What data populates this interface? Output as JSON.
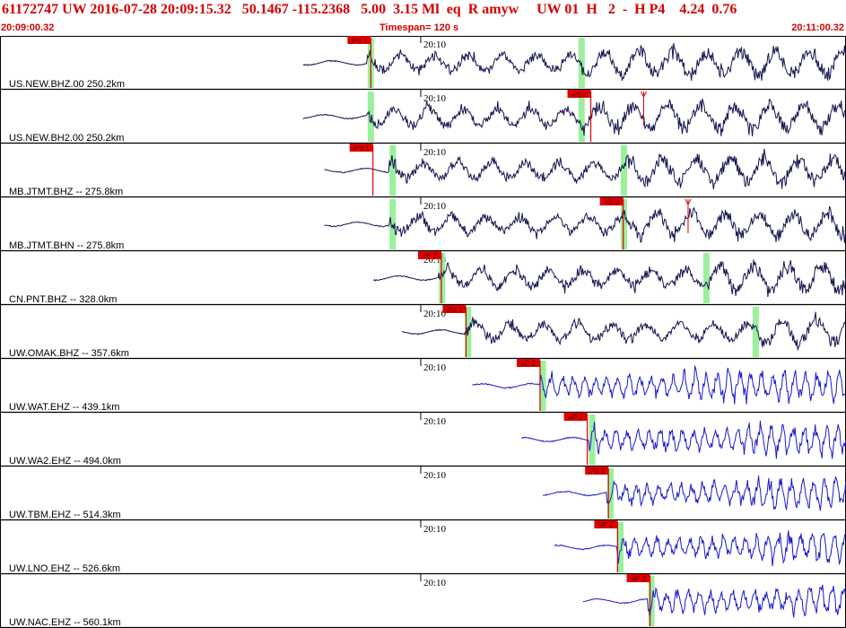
{
  "header": {
    "title": "61172747 UW 2016-07-28 20:09:15.32   50.1467 -115.2368   5.00  3.15 Ml  eq  R amyw     UW 01  H   2  -  H P4    4.24  0.76",
    "start_time": "20:09:00.32",
    "timespan": "Timespan= 120 s",
    "end_time": "20:11:00.32"
  },
  "chart_data": {
    "type": "line",
    "title": "61172747 UW 2016-07-28 20:09:15.32   50.1467 -115.2368   5.00  3.15 Ml  eq  R amyw     UW 01  H   2  -  H P4    4.24  0.76",
    "x_unit": "seconds after 20:09:00.32",
    "xlim": [
      0,
      120
    ],
    "minute_label": "20:10",
    "minute_mark_s": 59.68,
    "colors": {
      "waveform_broadband": "#141450",
      "waveform_short_period": "#1a1acc",
      "pick": "#e00000",
      "window": "#90ee90",
      "grid": "#000000"
    },
    "traces": [
      {
        "label": "US.NEW.BHZ.00 250.2km",
        "color": "waveform_broadband",
        "start_s": 43.0,
        "windows_s": [
          52.6,
          82.5
        ],
        "picks": [
          {
            "label": "iPd 1",
            "t_s": 52.6
          }
        ]
      },
      {
        "label": "US.NEW.BH2.00 250.2km",
        "color": "waveform_broadband",
        "start_s": 43.0,
        "windows_s": [
          52.6,
          82.5
        ],
        "picks": [
          {
            "label": "eS 2",
            "t_s": 83.8
          }
        ],
        "marks_s": [
          91.3
        ]
      },
      {
        "label": "MB.JTMT.BHZ -- 275.8km",
        "color": "waveform_broadband",
        "start_s": 46.0,
        "windows_s": [
          55.7,
          88.5
        ],
        "picks": [
          {
            "label": "iPd 1",
            "t_s": 52.9
          }
        ]
      },
      {
        "label": "MB.JTMT.BHN -- 275.8km",
        "color": "waveform_broadband",
        "start_s": 46.0,
        "windows_s": [
          55.7,
          88.5
        ],
        "picks": [
          {
            "label": "eS 2",
            "t_s": 88.4
          }
        ],
        "marks_s": [
          97.6
        ]
      },
      {
        "label": "CN.PNT.BHZ -- 328.0km",
        "color": "waveform_broadband",
        "start_s": 53.0,
        "windows_s": [
          62.7,
          100.2
        ],
        "picks": [
          {
            "label": "eP 2",
            "t_s": 62.6
          }
        ]
      },
      {
        "label": "UW.OMAK.BHZ -- 357.6km",
        "color": "waveform_broadband",
        "start_s": 57.0,
        "windows_s": [
          66.4,
          107.2
        ],
        "picks": [
          {
            "label": "iPd 1",
            "t_s": 66.1
          }
        ]
      },
      {
        "label": "UW.WAT.EHZ -- 439.1km",
        "color": "waveform_short_period",
        "start_s": 67.0,
        "windows_s": [
          77.0
        ],
        "picks": [
          {
            "label": "eP 2",
            "t_s": 76.6
          }
        ]
      },
      {
        "label": "UW.WA2.EHZ -- 494.0km",
        "color": "waveform_short_period",
        "start_s": 74.0,
        "windows_s": [
          84.0
        ],
        "picks": [
          {
            "label": "eP 2",
            "t_s": 83.3
          }
        ]
      },
      {
        "label": "UW.TBM.EHZ -- 514.3km",
        "color": "waveform_short_period",
        "start_s": 77.0,
        "windows_s": [
          86.6
        ],
        "picks": [
          {
            "label": "iPd 1",
            "t_s": 86.3
          }
        ]
      },
      {
        "label": "UW.LNO.EHZ -- 526.6km",
        "color": "waveform_short_period",
        "start_s": 78.6,
        "windows_s": [
          88.0
        ],
        "picks": [
          {
            "label": "eP 2",
            "t_s": 87.6
          }
        ]
      },
      {
        "label": "UW.NAC.EHZ -- 560.1km",
        "color": "waveform_short_period",
        "start_s": 82.7,
        "windows_s": [
          92.4
        ],
        "picks": [
          {
            "label": "eP 2",
            "t_s": 92.2
          }
        ]
      }
    ]
  }
}
